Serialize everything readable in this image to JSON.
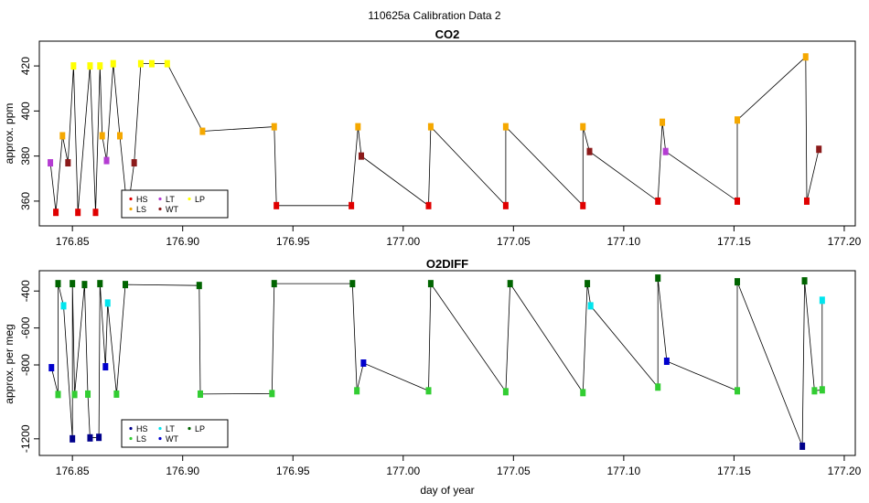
{
  "figure_title": "110625a   Calibration Data 2",
  "colors": {
    "HS": "#e00000",
    "LS": "#f5a800",
    "LT": "#b43cd2",
    "WT": "#8b1a1a",
    "LP": "#ffff00",
    "HS_o2": "#00008b",
    "LS_o2": "#32cd32",
    "LT_o2": "#00e5ee",
    "WT_o2": "#0000cd",
    "LP_o2": "#006400",
    "trace": "#000000"
  },
  "chart_data": [
    {
      "type": "line",
      "title": "CO2",
      "xlabel": "",
      "ylabel": "approx. ppm",
      "xlim": [
        176.835,
        177.205
      ],
      "ylim": [
        349,
        431
      ],
      "xticks": [
        "176.85",
        "176.90",
        "176.95",
        "177.00",
        "177.05",
        "177.10",
        "177.15",
        "177.20"
      ],
      "yticks": [
        "360",
        "380",
        "400",
        "420"
      ],
      "legend": {
        "placement": "bottom-left",
        "entries": [
          "HS",
          "LS",
          "LT",
          "WT",
          "LP"
        ]
      },
      "series": [
        {
          "name": "HS",
          "points": [
            [
              176.8425,
              355
            ],
            [
              176.8525,
              355
            ],
            [
              176.8605,
              355
            ],
            [
              176.875,
              355
            ],
            [
              176.9425,
              358
            ],
            [
              176.9765,
              358
            ],
            [
              177.0115,
              358
            ],
            [
              177.0465,
              358
            ],
            [
              177.0815,
              358
            ],
            [
              177.1155,
              360
            ],
            [
              177.1515,
              360
            ],
            [
              177.183,
              360
            ]
          ]
        },
        {
          "name": "LS",
          "points": [
            [
              176.8455,
              389
            ],
            [
              176.8635,
              389
            ],
            [
              176.8715,
              389
            ],
            [
              176.909,
              391
            ],
            [
              176.9415,
              393
            ],
            [
              176.9795,
              393
            ],
            [
              177.0125,
              393
            ],
            [
              177.0465,
              393
            ],
            [
              177.0815,
              393
            ],
            [
              177.1175,
              395
            ],
            [
              177.1515,
              396
            ],
            [
              177.1825,
              424
            ]
          ]
        },
        {
          "name": "LT",
          "points": [
            [
              176.84,
              377
            ],
            [
              176.8655,
              378
            ],
            [
              177.119,
              382
            ]
          ]
        },
        {
          "name": "WT",
          "points": [
            [
              176.848,
              377
            ],
            [
              176.878,
              377
            ],
            [
              176.981,
              380
            ],
            [
              177.0845,
              382
            ],
            [
              177.1885,
              383
            ]
          ]
        },
        {
          "name": "LP",
          "points": [
            [
              176.8505,
              420
            ],
            [
              176.858,
              420
            ],
            [
              176.8625,
              420
            ],
            [
              176.8685,
              421
            ],
            [
              176.881,
              421
            ],
            [
              176.886,
              421
            ],
            [
              176.893,
              421
            ]
          ]
        }
      ]
    },
    {
      "type": "line",
      "title": "O2DIFF",
      "xlabel": "day of year",
      "ylabel": "approx. per meg",
      "xlim": [
        176.835,
        177.205
      ],
      "ylim": [
        -1290,
        -290
      ],
      "xticks": [
        "176.85",
        "176.90",
        "176.95",
        "177.00",
        "177.05",
        "177.10",
        "177.15",
        "177.20"
      ],
      "yticks": [
        "-400",
        "-600",
        "-800",
        "-1200"
      ],
      "legend": {
        "placement": "bottom-left",
        "entries": [
          "HS",
          "LS",
          "LT",
          "WT",
          "LP"
        ]
      },
      "series": [
        {
          "name": "HS",
          "points": [
            [
              176.85,
              -1200
            ],
            [
              176.858,
              -1195
            ],
            [
              176.862,
              -1192
            ],
            [
              177.181,
              -1240
            ]
          ]
        },
        {
          "name": "LS",
          "points": [
            [
              176.8435,
              -960
            ],
            [
              176.851,
              -960
            ],
            [
              176.857,
              -958
            ],
            [
              176.87,
              -958
            ],
            [
              176.908,
              -958
            ],
            [
              176.9405,
              -955
            ],
            [
              176.979,
              -940
            ],
            [
              177.0115,
              -940
            ],
            [
              177.0465,
              -945
            ],
            [
              177.0815,
              -950
            ],
            [
              177.1155,
              -920
            ],
            [
              177.1515,
              -940
            ],
            [
              177.1865,
              -940
            ],
            [
              177.19,
              -935
            ]
          ]
        },
        {
          "name": "LT",
          "points": [
            [
              176.846,
              -480
            ],
            [
              176.866,
              -465
            ],
            [
              177.085,
              -480
            ],
            [
              177.19,
              -450
            ]
          ]
        },
        {
          "name": "WT",
          "points": [
            [
              176.8405,
              -815
            ],
            [
              176.865,
              -810
            ],
            [
              176.982,
              -790
            ],
            [
              177.1195,
              -780
            ]
          ]
        },
        {
          "name": "LP",
          "points": [
            [
              176.8435,
              -360
            ],
            [
              176.85,
              -360
            ],
            [
              176.8555,
              -365
            ],
            [
              176.8625,
              -360
            ],
            [
              176.874,
              -365
            ],
            [
              176.9075,
              -370
            ],
            [
              176.9415,
              -360
            ],
            [
              176.977,
              -360
            ],
            [
              177.0125,
              -360
            ],
            [
              177.0485,
              -360
            ],
            [
              177.0835,
              -360
            ],
            [
              177.1155,
              -330
            ],
            [
              177.1515,
              -350
            ],
            [
              177.182,
              -345
            ]
          ]
        }
      ]
    }
  ]
}
